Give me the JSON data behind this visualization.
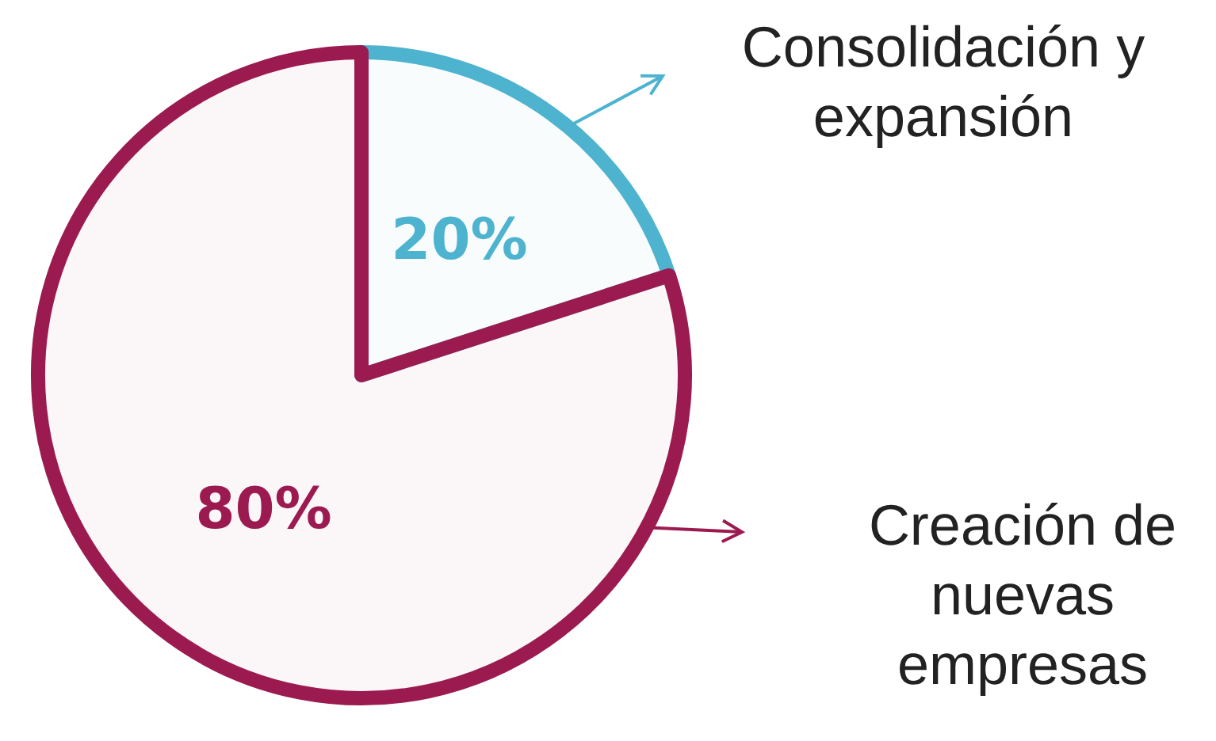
{
  "chart_data": {
    "type": "pie",
    "categories": [
      "Consolidación y expansión",
      "Creación de nuevas empresas"
    ],
    "values": [
      20,
      80
    ],
    "colors": [
      "#4db3cf",
      "#9b1b50"
    ],
    "value_labels": [
      "20%",
      "80%"
    ],
    "legend": "right"
  }
}
